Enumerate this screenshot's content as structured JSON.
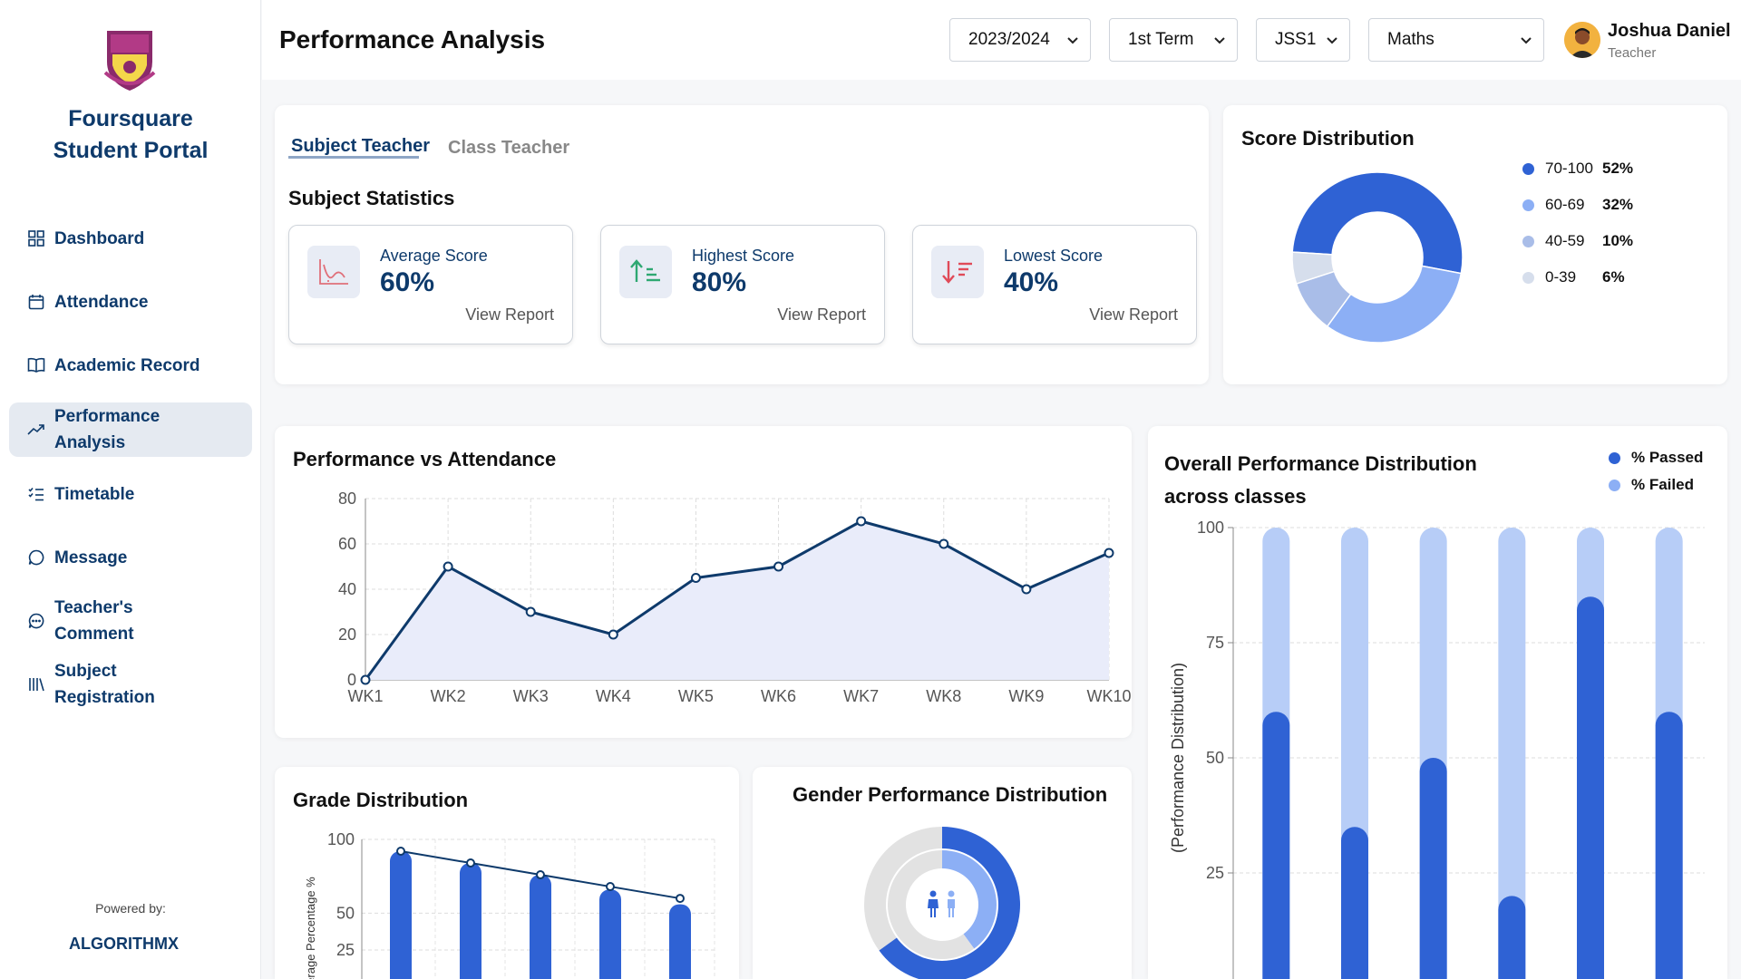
{
  "sidebar": {
    "brand_line1": "Foursquare",
    "brand_line2": "Student Portal",
    "items": [
      {
        "label": "Dashboard",
        "icon": "grid-icon"
      },
      {
        "label": "Attendance",
        "icon": "calendar-icon"
      },
      {
        "label": "Academic Record",
        "icon": "book-icon"
      },
      {
        "label": "Performance Analysis",
        "icon": "trend-icon",
        "active": true
      },
      {
        "label": "Timetable",
        "icon": "checklist-icon"
      },
      {
        "label": "Message",
        "icon": "chat-icon"
      },
      {
        "label": "Teacher's Comment",
        "icon": "comment-icon"
      },
      {
        "label": "Subject Registration",
        "icon": "library-icon"
      }
    ],
    "powered_by": "Powered by:",
    "powered_brand": "ALGORITHMX"
  },
  "header": {
    "title": "Performance Analysis",
    "filters": {
      "session": "2023/2024",
      "term": "1st Term",
      "class": "JSS1",
      "subject": "Maths"
    },
    "user": {
      "name": "Joshua Daniel",
      "role": "Teacher"
    }
  },
  "tabs": {
    "active": "Subject Teacher",
    "inactive": "Class Teacher"
  },
  "subject_stats": {
    "title": "Subject Statistics",
    "cards": [
      {
        "label": "Average Score",
        "value": "60%",
        "link": "View Report"
      },
      {
        "label": "Highest Score",
        "value": "80%",
        "link": "View Report"
      },
      {
        "label": "Lowest Score",
        "value": "40%",
        "link": "View Report"
      }
    ]
  },
  "score_distribution": {
    "title": "Score Distribution",
    "items": [
      {
        "range": "70-100",
        "pct": "52%",
        "color": "#2f62d4"
      },
      {
        "range": "60-69",
        "pct": "32%",
        "color": "#8caff5"
      },
      {
        "range": "40-59",
        "pct": "10%",
        "color": "#a9bde8"
      },
      {
        "range": "0-39",
        "pct": "6%",
        "color": "#d6deec"
      }
    ]
  },
  "perf_vs_attendance": {
    "title": "Performance vs Attendance"
  },
  "overall_dist": {
    "title_line1": "Overall Performance Distribution",
    "title_line2": "across classes",
    "legend_passed": "% Passed",
    "legend_failed": "% Failed",
    "ylabel": "(Performance Distribution)"
  },
  "grade_dist": {
    "title": "Grade Distribution",
    "ylabel": "Average Percentage %"
  },
  "gender_dist": {
    "title": "Gender Performance Distribution"
  },
  "chart_data": [
    {
      "type": "pie",
      "title": "Score Distribution",
      "categories": [
        "70-100",
        "60-69",
        "40-59",
        "0-39"
      ],
      "values": [
        52,
        32,
        10,
        6
      ],
      "colors": [
        "#2f62d4",
        "#8caff5",
        "#a9bde8",
        "#d6deec"
      ]
    },
    {
      "type": "area",
      "title": "Performance vs Attendance",
      "categories": [
        "WK1",
        "WK2",
        "WK3",
        "WK4",
        "WK5",
        "WK6",
        "WK7",
        "WK8",
        "WK9",
        "WK10"
      ],
      "values": [
        0,
        50,
        30,
        20,
        45,
        50,
        70,
        60,
        40,
        56
      ],
      "ylim": [
        0,
        80
      ],
      "yticks": [
        0,
        20,
        40,
        60,
        80
      ],
      "grid": true,
      "color": "#0e3a6b"
    },
    {
      "type": "bar",
      "title": "Overall Performance Distribution across classes",
      "ylabel": "(Performance Distribution)",
      "ylim": [
        0,
        100
      ],
      "yticks": [
        25,
        50,
        75,
        100
      ],
      "series": [
        {
          "name": "% Passed",
          "values": [
            60,
            35,
            50,
            20,
            85,
            60
          ],
          "color": "#2f62d4"
        },
        {
          "name": "% Failed",
          "values": [
            40,
            65,
            50,
            80,
            15,
            40
          ],
          "color": "#b7cdf7"
        }
      ],
      "legend": "top-right",
      "grid": true
    },
    {
      "type": "bar",
      "title": "Grade Distribution",
      "ylabel": "Average Percentage %",
      "ylim": [
        0,
        100
      ],
      "yticks": [
        25,
        50,
        100
      ],
      "values": [
        92,
        84,
        76,
        66,
        56
      ],
      "line_values": [
        92,
        84,
        76,
        68,
        60
      ],
      "grid": true
    },
    {
      "type": "pie",
      "title": "Gender Performance Distribution",
      "series": [
        {
          "name": "outer",
          "values": [
            65,
            35
          ],
          "colors": [
            "#2f62d4",
            "#e2e2e2"
          ]
        },
        {
          "name": "inner",
          "values": [
            40,
            60
          ],
          "colors": [
            "#8caff5",
            "#e2e2e2"
          ]
        }
      ]
    }
  ]
}
